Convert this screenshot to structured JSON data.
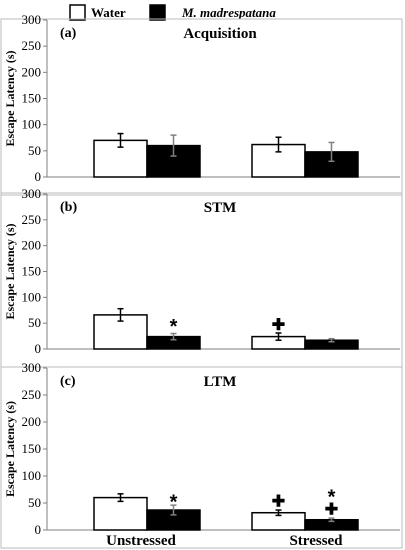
{
  "colors": {
    "water": "#ffffff",
    "treatment": "#000000",
    "axis": "#7f7f7f",
    "error": "#808080"
  },
  "chart_data": {
    "type": "bar",
    "legend": {
      "placement": "top",
      "entries": [
        {
          "label": "Water",
          "color": "#ffffff"
        },
        {
          "label": "M. madrespatana",
          "color": "#000000"
        }
      ]
    },
    "categories": [
      "Unstressed",
      "Stressed"
    ],
    "ylabel": "Escape Latency (s)",
    "ylim": [
      0,
      300
    ],
    "yticks": [
      0,
      50,
      100,
      150,
      200,
      250,
      300
    ],
    "grid": false,
    "panels": [
      {
        "label": "(a)",
        "title": "Acquisition",
        "series": [
          {
            "name": "Water",
            "values": [
              70,
              62
            ],
            "errors": [
              13,
              14
            ]
          },
          {
            "name": "M. madrespatana",
            "values": [
              60,
              48
            ],
            "errors": [
              20,
              18
            ]
          }
        ],
        "annotations": []
      },
      {
        "label": "(b)",
        "title": "STM",
        "series": [
          {
            "name": "Water",
            "values": [
              66,
              24
            ],
            "errors": [
              12,
              7
            ]
          },
          {
            "name": "M. madrespatana",
            "values": [
              24,
              17
            ],
            "errors": [
              6,
              3
            ]
          }
        ],
        "annotations": [
          {
            "text": "*",
            "category": 0,
            "series": 1,
            "y": 50
          },
          {
            "text": "✚",
            "category": 1,
            "series": 0,
            "y": 48
          }
        ]
      },
      {
        "label": "(c)",
        "title": "LTM",
        "series": [
          {
            "name": "Water",
            "values": [
              60,
              32
            ],
            "errors": [
              7,
              5
            ]
          },
          {
            "name": "M. madrespatana",
            "values": [
              37,
              19
            ],
            "errors": [
              9,
              3
            ]
          }
        ],
        "annotations": [
          {
            "text": "*",
            "category": 0,
            "series": 1,
            "y": 58
          },
          {
            "text": "✚",
            "category": 1,
            "series": 0,
            "y": 55
          },
          {
            "text": "*",
            "category": 1,
            "series": 1,
            "y": 68
          },
          {
            "text": "✚",
            "category": 1,
            "series": 1,
            "y": 40
          }
        ]
      }
    ]
  }
}
